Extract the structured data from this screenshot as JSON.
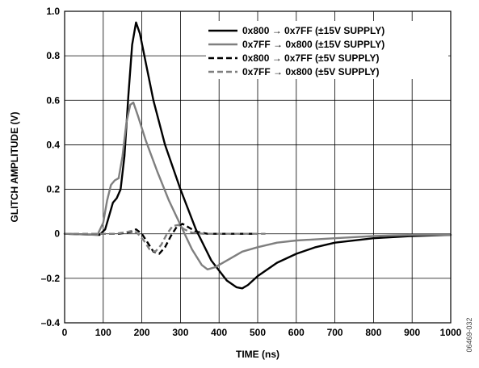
{
  "chart_data": {
    "type": "line",
    "xlabel": "TIME (ns)",
    "ylabel": "GLITCH AMPLITUDE (V)",
    "xlim": [
      0,
      1000
    ],
    "ylim": [
      -0.4,
      1.0
    ],
    "xticks": [
      0,
      100,
      200,
      300,
      400,
      500,
      600,
      700,
      800,
      900,
      1000
    ],
    "yticks": [
      -0.4,
      -0.2,
      0,
      0.2,
      0.4,
      0.6,
      0.8,
      1.0
    ],
    "xtick_labels": [
      "0",
      "100",
      "200",
      "300",
      "400",
      "500",
      "600",
      "700",
      "800",
      "900",
      "1000"
    ],
    "ytick_labels": [
      "–0.4",
      "–0.2",
      "0",
      "0.2",
      "0.4",
      "0.6",
      "0.8",
      "1.0"
    ],
    "grid": true,
    "legend_position": "top-right",
    "figure_id": "06469-032",
    "series": [
      {
        "name": "0x800 → 0x7FF (±15V SUPPLY)",
        "color": "#000000",
        "dash": "solid",
        "x": [
          0,
          90,
          105,
          115,
          125,
          135,
          145,
          155,
          165,
          175,
          185,
          195,
          210,
          230,
          260,
          300,
          340,
          380,
          420,
          445,
          460,
          475,
          500,
          550,
          600,
          650,
          700,
          800,
          900,
          1000
        ],
        "y": [
          0,
          -0.005,
          0.02,
          0.08,
          0.14,
          0.16,
          0.2,
          0.35,
          0.62,
          0.85,
          0.95,
          0.9,
          0.77,
          0.6,
          0.4,
          0.2,
          0.02,
          -0.12,
          -0.21,
          -0.24,
          -0.245,
          -0.23,
          -0.19,
          -0.13,
          -0.09,
          -0.06,
          -0.04,
          -0.02,
          -0.01,
          -0.005
        ]
      },
      {
        "name": "0x7FF → 0x800 (±15V SUPPLY)",
        "color": "#7f7f7f",
        "dash": "solid",
        "x": [
          0,
          85,
          100,
          110,
          120,
          130,
          140,
          150,
          160,
          170,
          178,
          190,
          210,
          240,
          270,
          300,
          330,
          355,
          370,
          390,
          420,
          460,
          500,
          550,
          600,
          700,
          800,
          900,
          1000
        ],
        "y": [
          0,
          -0.005,
          0.05,
          0.15,
          0.22,
          0.24,
          0.25,
          0.35,
          0.5,
          0.58,
          0.59,
          0.53,
          0.42,
          0.28,
          0.15,
          0.04,
          -0.07,
          -0.14,
          -0.16,
          -0.15,
          -0.12,
          -0.08,
          -0.06,
          -0.04,
          -0.03,
          -0.02,
          -0.01,
          -0.005,
          -0.005
        ]
      },
      {
        "name": "0x800 → 0x7FF (±5V SUPPLY)",
        "color": "#000000",
        "dash": "dashed",
        "x": [
          0,
          140,
          160,
          175,
          185,
          200,
          215,
          230,
          245,
          260,
          275,
          290,
          305,
          320,
          340,
          370,
          420,
          500
        ],
        "y": [
          0,
          0,
          0.005,
          0.01,
          0.02,
          0.0,
          -0.04,
          -0.08,
          -0.09,
          -0.06,
          -0.01,
          0.03,
          0.045,
          0.03,
          0.01,
          0.0,
          0,
          0
        ]
      },
      {
        "name": "0x7FF → 0x800 (±5V SUPPLY)",
        "color": "#7f7f7f",
        "dash": "dashed",
        "x": [
          0,
          130,
          150,
          165,
          178,
          190,
          205,
          220,
          235,
          250,
          265,
          280,
          295,
          310,
          330,
          360,
          420,
          520
        ],
        "y": [
          0,
          0,
          0.005,
          0.01,
          0.015,
          0.0,
          -0.03,
          -0.07,
          -0.08,
          -0.05,
          0.0,
          0.035,
          0.04,
          0.02,
          0.005,
          0,
          0,
          0
        ]
      }
    ]
  }
}
